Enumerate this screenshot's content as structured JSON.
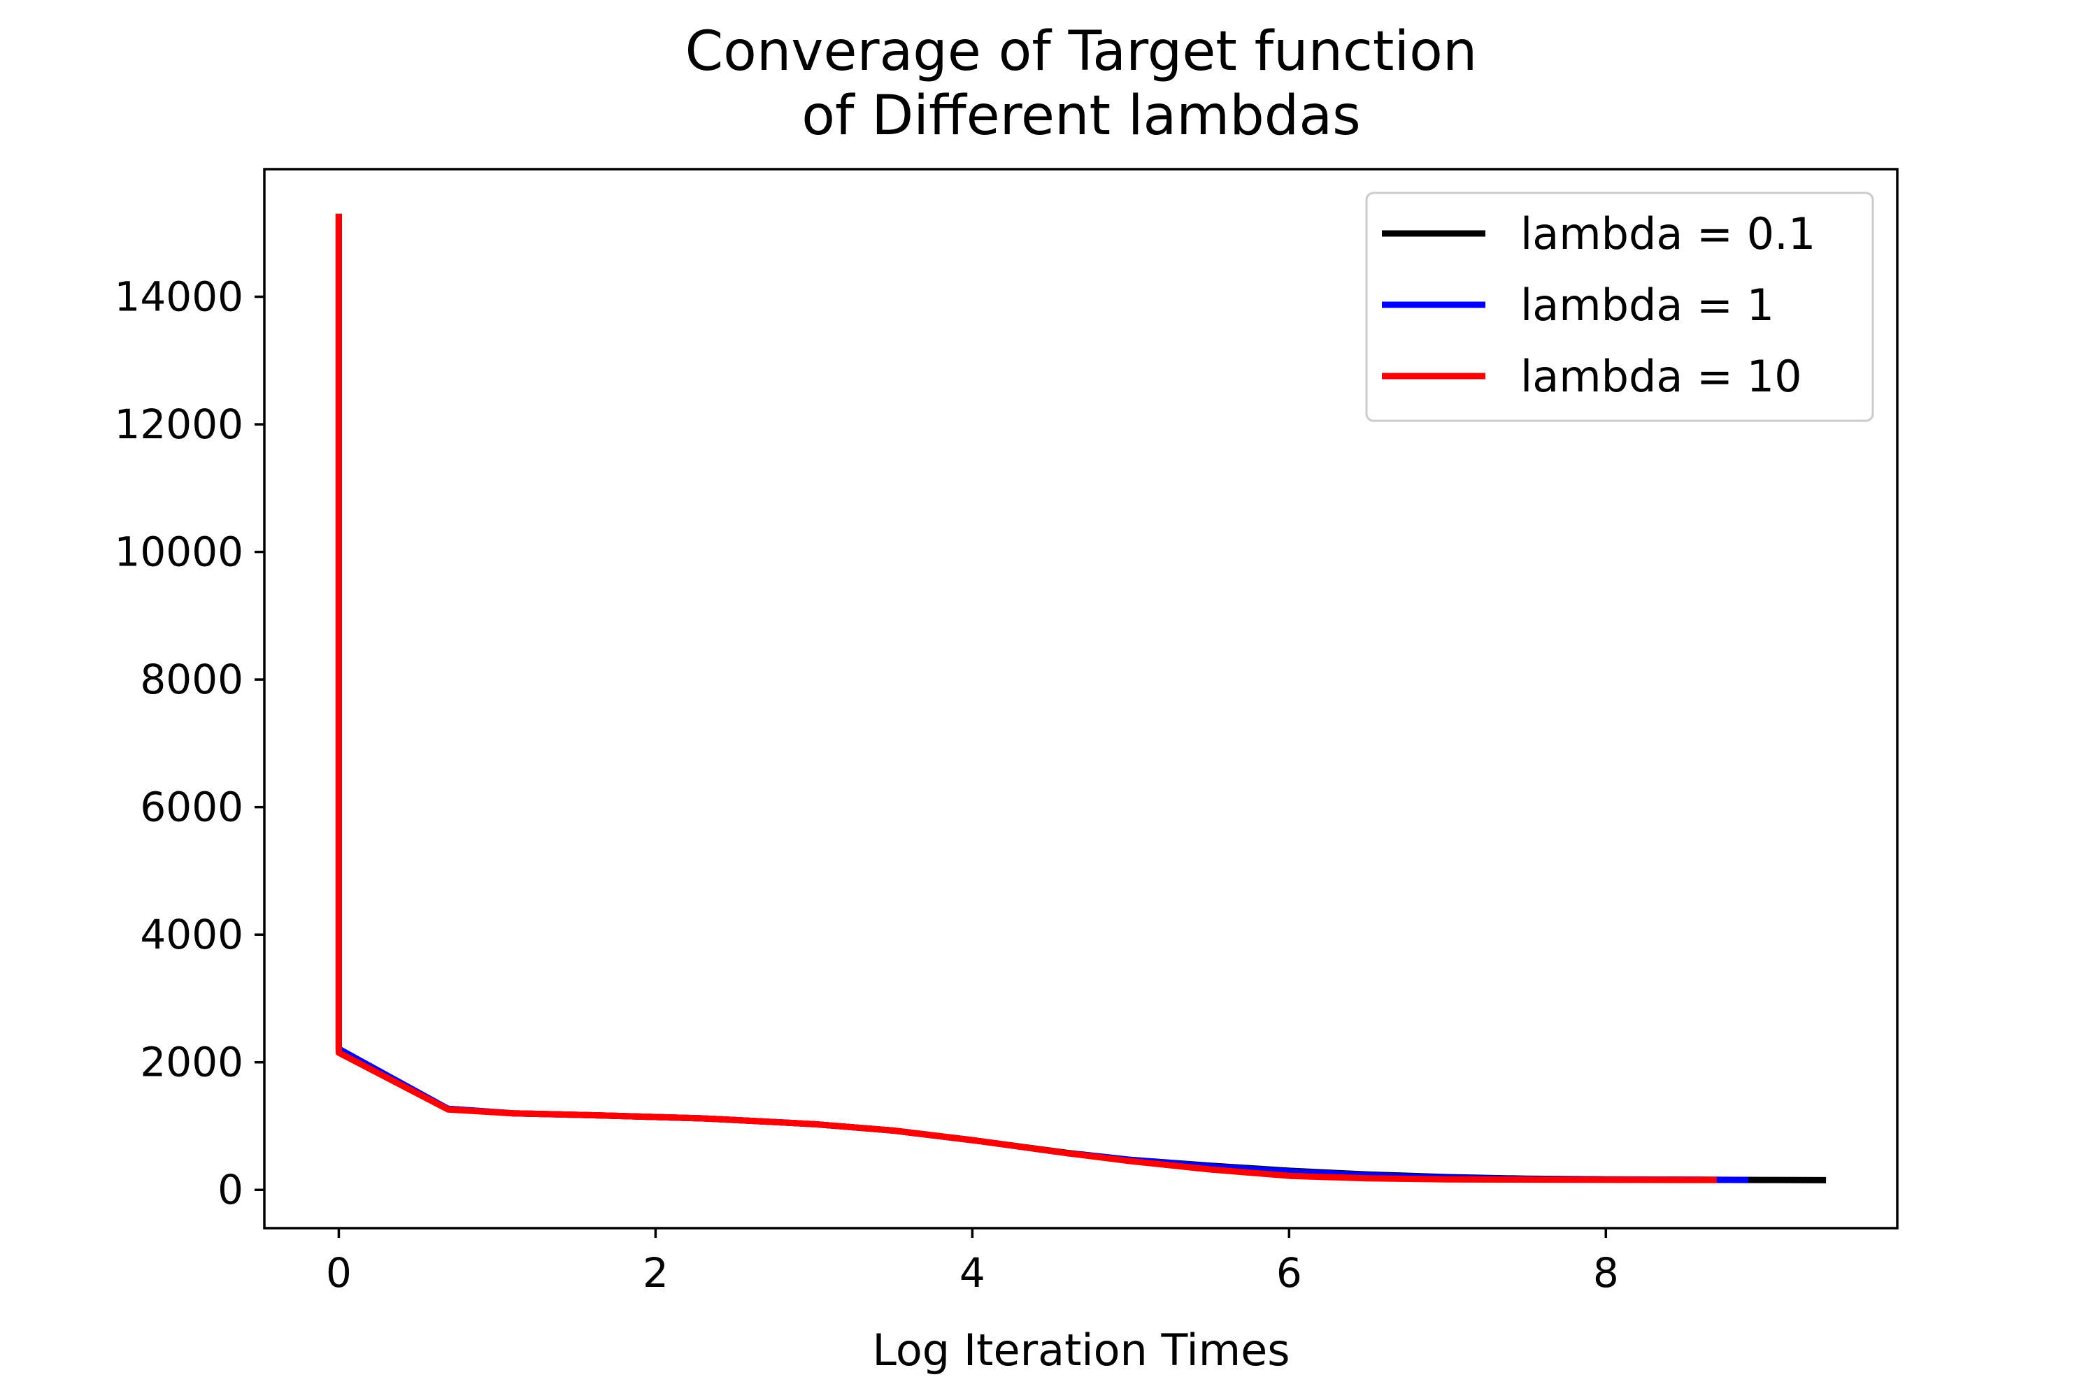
{
  "chart_data": {
    "type": "line",
    "title_lines": [
      "Converage of Target function",
      "of Different lambdas"
    ],
    "xlabel": "Log Iteration Times",
    "ylabel": "",
    "xlim": [
      -0.47,
      9.84
    ],
    "ylim": [
      -600,
      16000
    ],
    "xticks": [
      0,
      2,
      4,
      6,
      8
    ],
    "yticks": [
      0,
      2000,
      4000,
      6000,
      8000,
      10000,
      12000,
      14000
    ],
    "grid": false,
    "legend_position": "upper right",
    "series": [
      {
        "name": "lambda = 0.1",
        "color": "#000000",
        "x": [
          0,
          0,
          0.69,
          1.1,
          1.61,
          2.3,
          3.0,
          3.5,
          4.0,
          4.6,
          5.0,
          5.5,
          6.0,
          6.5,
          7.0,
          7.5,
          8.0,
          8.5,
          9.0,
          9.39
        ],
        "y": [
          15300,
          2200,
          1270,
          1200,
          1170,
          1120,
          1030,
          930,
          780,
          580,
          470,
          380,
          300,
          240,
          200,
          175,
          165,
          160,
          155,
          152
        ]
      },
      {
        "name": "lambda = 1",
        "color": "#0000ff",
        "x": [
          0,
          0,
          0.69,
          1.1,
          1.61,
          2.3,
          3.0,
          3.5,
          4.0,
          4.6,
          5.0,
          5.5,
          6.0,
          6.5,
          7.0,
          7.5,
          8.0,
          8.5,
          8.9
        ],
        "y": [
          15300,
          2210,
          1270,
          1200,
          1170,
          1120,
          1030,
          930,
          780,
          575,
          470,
          370,
          290,
          230,
          190,
          170,
          162,
          158,
          155
        ]
      },
      {
        "name": "lambda = 10",
        "color": "#ff0000",
        "x": [
          0,
          0,
          0.69,
          1.1,
          1.61,
          2.3,
          3.0,
          3.5,
          4.0,
          4.6,
          5.0,
          5.5,
          6.0,
          6.5,
          7.0,
          7.5,
          8.0,
          8.5,
          8.7
        ],
        "y": [
          15300,
          2150,
          1260,
          1200,
          1170,
          1120,
          1030,
          930,
          780,
          575,
          450,
          320,
          220,
          180,
          165,
          160,
          157,
          155,
          155
        ]
      }
    ]
  }
}
